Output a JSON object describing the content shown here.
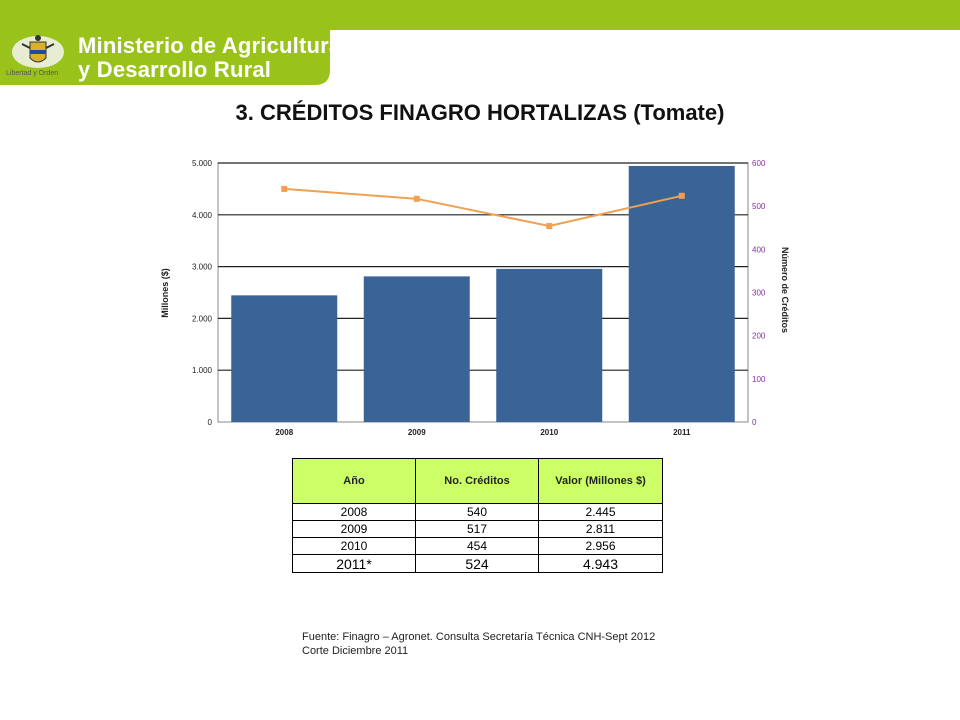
{
  "header": {
    "ministry_line1": "Ministerio de Agricultura",
    "ministry_line2": "y Desarrollo Rural",
    "seal_caption": "Libertad y Orden",
    "bar_color": "#99c31a"
  },
  "title": "3. CRÉDITOS FINAGRO HORTALIZAS (Tomate)",
  "chart_data": {
    "type": "bar",
    "categories": [
      "2008",
      "2009",
      "2010",
      "2011"
    ],
    "series": [
      {
        "values": [
          2445,
          2811,
          2956,
          4943
        ],
        "axis": "left",
        "kind": "bar",
        "color": "#3a6496"
      },
      {
        "values": [
          540,
          517,
          454,
          524
        ],
        "axis": "right",
        "kind": "line",
        "color": "#f0a050"
      }
    ],
    "ylabel": "Millones ($)",
    "y2label": "Número de Créditos",
    "ylim": [
      0,
      5000
    ],
    "y2lim": [
      0,
      600
    ],
    "yticks": [
      "0",
      "1.000",
      "2.000",
      "3.000",
      "4.000",
      "5.000"
    ],
    "y2ticks": [
      "0",
      "100",
      "200",
      "300",
      "400",
      "500",
      "600"
    ],
    "grid": true
  },
  "table": {
    "headers": [
      "Año",
      "No. Créditos",
      "Valor (Millones $)"
    ],
    "rows": [
      [
        "2008",
        "540",
        "2.445"
      ],
      [
        "2009",
        "517",
        "2.811"
      ],
      [
        "2010",
        "454",
        "2.956"
      ],
      [
        "2011*",
        "524",
        "4.943"
      ]
    ]
  },
  "source": {
    "line1": "Fuente: Finagro – Agronet.  Consulta Secretaría Técnica CNH-Sept 2012",
    "line2": "Corte Diciembre 2011"
  }
}
